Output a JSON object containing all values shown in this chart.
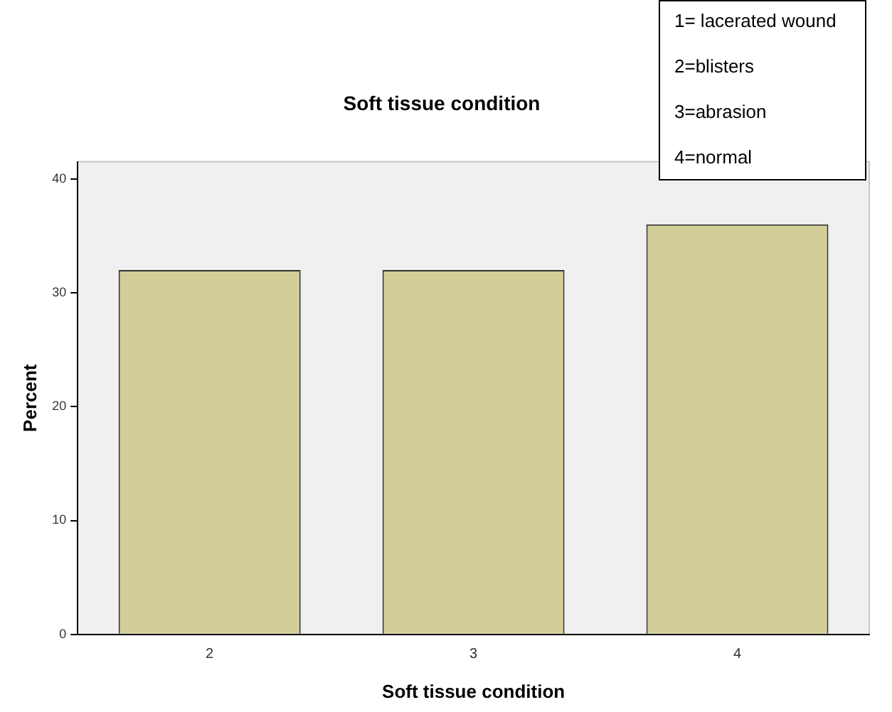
{
  "chart_data": {
    "type": "bar",
    "title": "Soft tissue condition",
    "xlabel": "Soft tissue condition",
    "ylabel": "Percent",
    "categories": [
      "2",
      "3",
      "4"
    ],
    "values": [
      32,
      32,
      36
    ],
    "color": "#d3ce97",
    "ylim": [
      0,
      41.5
    ],
    "yticks": [
      0,
      10,
      20,
      30,
      40
    ],
    "grid": false,
    "legend": false,
    "annotations": [
      "1= lacerated wound",
      "2=blisters",
      "3=abrasion",
      "4=normal"
    ]
  }
}
